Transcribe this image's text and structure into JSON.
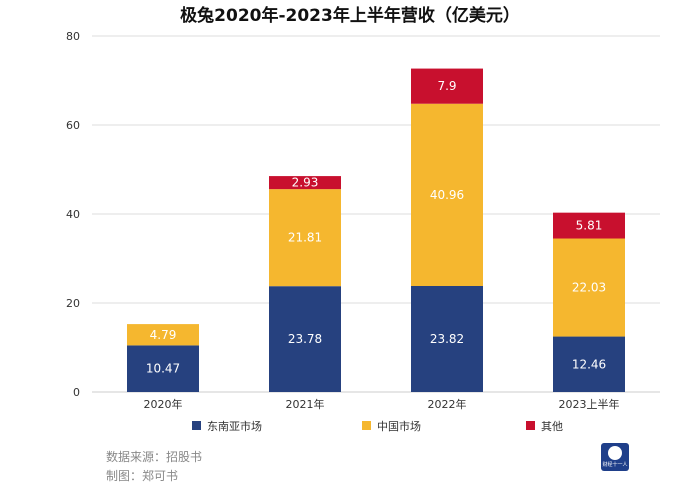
{
  "chart_data": {
    "type": "bar",
    "stacked": true,
    "title": "极兔2020年-2023年上半年营收（亿美元）",
    "categories": [
      "2020年",
      "2021年",
      "2022年",
      "2023上半年"
    ],
    "series": [
      {
        "name": "东南亚市场",
        "color": "#26417f",
        "label_color": "#ffffff",
        "values": [
          10.47,
          23.78,
          23.82,
          12.46
        ]
      },
      {
        "name": "中国市场",
        "color": "#f5b72f",
        "label_color": "#ffffff",
        "values": [
          4.79,
          21.81,
          40.96,
          22.03
        ]
      },
      {
        "name": "其他",
        "color": "#c8102e",
        "label_color": "#ffffff",
        "values": [
          null,
          2.93,
          7.9,
          5.81
        ]
      }
    ],
    "ylim": [
      0,
      80
    ],
    "yticks": [
      0,
      20,
      40,
      60,
      80
    ],
    "grid": true,
    "legend": "bottom",
    "xlabel": "",
    "ylabel": ""
  },
  "footer": {
    "source": "数据来源：招股书",
    "author": "制图：郑可书",
    "logo_text": "财经十一人"
  }
}
